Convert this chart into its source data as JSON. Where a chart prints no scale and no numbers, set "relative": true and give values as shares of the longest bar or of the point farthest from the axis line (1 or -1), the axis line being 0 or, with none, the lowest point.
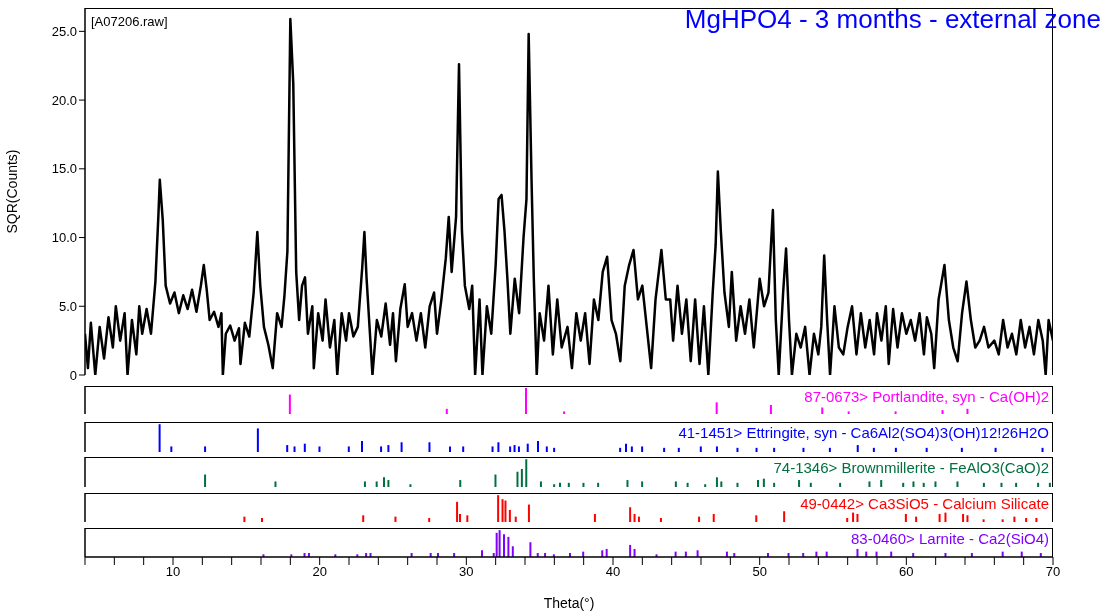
{
  "chart_data": [
    {
      "type": "line",
      "title": "MgHPO4 - 3 months - external zone",
      "ylabel": "SQR(Counts)",
      "annotations": [
        "[A07206.raw]"
      ],
      "color": "#000000",
      "marker": "none",
      "tick_labels": "y",
      "xlim": [
        4,
        70
      ],
      "ylim": [
        0,
        26.7
      ],
      "yticks": [
        0,
        {
          "value": 5,
          "label": "5.0"
        },
        {
          "value": 10,
          "label": "10.0"
        },
        {
          "value": 15,
          "label": "15.0"
        },
        {
          "value": 20,
          "label": "20.0"
        },
        {
          "value": 25,
          "label": "25.0"
        }
      ],
      "x": [
        4.0,
        4.2,
        4.4,
        4.7,
        5.0,
        5.3,
        5.6,
        5.9,
        6.1,
        6.4,
        6.7,
        6.9,
        7.2,
        7.5,
        7.7,
        7.9,
        8.2,
        8.5,
        8.8,
        9.0,
        9.1,
        9.3,
        9.5,
        9.8,
        10.1,
        10.4,
        10.7,
        11.0,
        11.3,
        11.6,
        11.9,
        12.1,
        12.3,
        12.5,
        12.8,
        13.1,
        13.3,
        13.4,
        13.6,
        13.9,
        14.2,
        14.5,
        14.6,
        14.9,
        15.2,
        15.5,
        15.75,
        15.95,
        16.2,
        16.5,
        16.8,
        17.1,
        17.4,
        17.6,
        17.8,
        18.0,
        18.2,
        18.4,
        18.6,
        18.8,
        19.0,
        19.2,
        19.5,
        19.6,
        19.9,
        20.2,
        20.4,
        20.7,
        21.0,
        21.2,
        21.5,
        21.8,
        22.0,
        22.3,
        22.6,
        22.9,
        23.05,
        23.2,
        23.4,
        23.6,
        23.9,
        24.2,
        24.5,
        24.8,
        25.0,
        25.2,
        25.5,
        25.8,
        26.0,
        26.3,
        26.6,
        26.9,
        27.2,
        27.5,
        27.8,
        28.0,
        28.3,
        28.6,
        28.8,
        29.0,
        29.3,
        29.5,
        29.7,
        29.9,
        30.2,
        30.4,
        30.6,
        30.9,
        31.1,
        31.4,
        31.7,
        32.0,
        32.2,
        32.4,
        32.6,
        32.8,
        33.0,
        33.3,
        33.6,
        33.9,
        34.1,
        34.25,
        34.45,
        34.6,
        34.8,
        35.0,
        35.3,
        35.6,
        35.9,
        36.2,
        36.5,
        36.9,
        37.2,
        37.5,
        37.8,
        38.1,
        38.4,
        38.7,
        39.0,
        39.3,
        39.6,
        39.9,
        40.2,
        40.5,
        40.8,
        41.1,
        41.4,
        41.7,
        42.0,
        42.3,
        42.6,
        42.9,
        43.3,
        43.6,
        43.9,
        44.1,
        44.4,
        44.7,
        45.0,
        45.3,
        45.6,
        45.9,
        46.2,
        46.5,
        46.8,
        47.0,
        47.15,
        47.35,
        47.6,
        47.9,
        48.1,
        48.4,
        48.7,
        49.0,
        49.3,
        49.6,
        50.0,
        50.3,
        50.6,
        50.9,
        51.1,
        51.3,
        51.6,
        51.8,
        52.0,
        52.2,
        52.5,
        52.8,
        53.1,
        53.4,
        53.7,
        54.0,
        54.2,
        54.4,
        54.6,
        54.8,
        55.1,
        55.4,
        55.7,
        56.0,
        56.3,
        56.6,
        56.9,
        57.2,
        57.5,
        57.8,
        58.0,
        58.3,
        58.6,
        58.8,
        59.1,
        59.4,
        59.7,
        60.0,
        60.3,
        60.6,
        60.9,
        61.2,
        61.4,
        61.7,
        61.9,
        62.2,
        62.6,
        62.9,
        63.2,
        63.5,
        63.8,
        64.1,
        64.4,
        64.7,
        65.0,
        65.3,
        65.6,
        66.0,
        66.3,
        66.6,
        66.9,
        67.2,
        67.5,
        67.8,
        68.1,
        68.4,
        68.7,
        69.0,
        69.3,
        69.5,
        69.7,
        70.0
      ],
      "values": [
        3.0,
        0.5,
        3.8,
        0,
        3.5,
        1.2,
        4.2,
        2.0,
        5.0,
        2.5,
        4.5,
        0,
        4.0,
        1.5,
        5.0,
        3.0,
        4.8,
        3.0,
        6.8,
        11.5,
        14.2,
        11.3,
        6.5,
        5.2,
        6.0,
        4.5,
        5.8,
        4.8,
        6.2,
        4.6,
        6.5,
        8.0,
        6.2,
        4.0,
        4.6,
        3.5,
        4.5,
        0,
        3.0,
        3.6,
        2.5,
        3.4,
        0.8,
        3.8,
        2.8,
        6.0,
        10.4,
        6.5,
        3.5,
        2.2,
        0.5,
        4.5,
        3.5,
        5.8,
        9.0,
        25.9,
        21.2,
        7.5,
        4.0,
        6.5,
        7.1,
        3.0,
        5.0,
        0.5,
        4.5,
        2.5,
        5.5,
        2.0,
        4.0,
        0,
        4.5,
        2.5,
        4.5,
        2.8,
        3.5,
        7.8,
        10.4,
        7.0,
        3.5,
        0,
        4.0,
        2.8,
        5.2,
        2.2,
        4.5,
        1.0,
        4.8,
        6.6,
        3.5,
        4.5,
        2.5,
        4.5,
        2.0,
        5.0,
        6.0,
        3.0,
        5.5,
        8.5,
        11.5,
        7.5,
        11.5,
        22.6,
        10.5,
        6.5,
        4.8,
        6.5,
        0,
        5.5,
        0,
        5.0,
        3.0,
        8.0,
        12.8,
        13.1,
        10.5,
        7.0,
        3.0,
        7.0,
        4.5,
        10.0,
        12.8,
        24.8,
        14.0,
        7.0,
        0,
        4.5,
        2.5,
        6.5,
        1.5,
        5.5,
        2.0,
        3.5,
        0.5,
        4.5,
        2.5,
        4.5,
        0.8,
        5.5,
        4.0,
        7.5,
        8.6,
        4.0,
        3.0,
        1.0,
        6.5,
        8.0,
        9.1,
        5.5,
        6.5,
        3.5,
        0.5,
        5.5,
        9.1,
        5.5,
        5.5,
        2.5,
        6.5,
        3.0,
        5.5,
        1.0,
        5.5,
        0.8,
        5.0,
        0,
        6.0,
        9.5,
        14.8,
        10.5,
        6.0,
        3.5,
        7.5,
        2.5,
        5.0,
        3.0,
        5.5,
        2.0,
        7.0,
        5.0,
        6.0,
        12.0,
        4.0,
        0,
        6.0,
        9.2,
        4.0,
        0,
        3.0,
        2.0,
        3.5,
        0,
        3.0,
        1.5,
        3.5,
        8.7,
        4.0,
        0,
        5.0,
        2.0,
        1.5,
        3.5,
        5.0,
        1.5,
        4.5,
        2.0,
        4.0,
        1.5,
        4.5,
        2.5,
        5.0,
        0.8,
        4.8,
        2.0,
        4.5,
        3.0,
        4.0,
        2.5,
        4.5,
        1.5,
        4.2,
        3.0,
        0.5,
        5.5,
        8.0,
        4.0,
        2.0,
        1.0,
        4.5,
        6.8,
        4.0,
        2.0,
        2.5,
        3.5,
        2.0,
        2.5,
        1.5,
        4.0,
        2.0,
        3.0,
        1.5,
        4.0,
        2.0,
        3.5,
        1.5,
        4.0,
        2.5,
        0,
        4.0,
        2.5
      ]
    },
    {
      "type": "bar",
      "relative": true,
      "tick_labels": false,
      "xlim": [
        4,
        70
      ],
      "x": [
        18.0,
        28.7,
        34.1,
        36.7,
        47.1,
        50.8,
        54.3,
        56.1,
        59.3,
        62.5,
        64.2
      ],
      "series": [
        {
          "name": "87-0673> Portlandite, syn - Ca(OH)2",
          "color": "#ff00ff",
          "values": [
            0.75,
            0.2,
            1.0,
            0.1,
            0.45,
            0.35,
            0.25,
            0.1,
            0.1,
            0.15,
            0.2
          ]
        }
      ]
    },
    {
      "type": "bar",
      "relative": true,
      "tick_labels": false,
      "xlim": [
        4,
        70
      ],
      "x": [
        9.1,
        9.9,
        12.2,
        15.8,
        17.8,
        18.3,
        19.0,
        20.0,
        22.0,
        22.9,
        24.2,
        24.7,
        25.6,
        27.5,
        28.9,
        29.8,
        31.8,
        32.2,
        33.0,
        33.3,
        33.6,
        34.2,
        34.9,
        35.5,
        36.0,
        40.5,
        40.9,
        41.3,
        42.0,
        43.5,
        44.5,
        46.0,
        47.1,
        48.5,
        49.8,
        51.0,
        53.0,
        54.8,
        56.7,
        57.8,
        59.3,
        61.4,
        63.8,
        66.1,
        69.3
      ],
      "series": [
        {
          "name": "41-1451> Ettringite, syn - Ca6Al2(SO4)3(OH)12!26H2O",
          "color": "#0000ff",
          "values": [
            1.0,
            0.2,
            0.2,
            0.85,
            0.25,
            0.2,
            0.3,
            0.2,
            0.2,
            0.4,
            0.2,
            0.25,
            0.35,
            0.35,
            0.2,
            0.2,
            0.2,
            0.35,
            0.2,
            0.25,
            0.2,
            0.3,
            0.4,
            0.2,
            0.15,
            0.15,
            0.3,
            0.2,
            0.2,
            0.15,
            0.15,
            0.2,
            0.2,
            0.15,
            0.15,
            0.15,
            0.15,
            0.15,
            0.25,
            0.15,
            0.15,
            0.15,
            0.15,
            0.15,
            0.15
          ]
        }
      ]
    },
    {
      "type": "bar",
      "relative": true,
      "tick_labels": false,
      "xlim": [
        4,
        70
      ],
      "x": [
        12.2,
        17.0,
        23.1,
        23.9,
        24.4,
        24.7,
        26.2,
        29.6,
        32.0,
        33.5,
        33.8,
        34.1,
        35.1,
        36.0,
        36.4,
        37.0,
        38.0,
        39.0,
        41.0,
        42.0,
        44.3,
        45.1,
        46.3,
        47.1,
        47.4,
        48.5,
        49.9,
        50.3,
        51.0,
        52.7,
        53.5,
        55.5,
        57.5,
        58.3,
        59.8,
        60.5,
        61.2,
        62.0,
        63.5,
        65.3,
        66.5,
        67.5,
        69.0,
        69.8
      ],
      "series": [
        {
          "name": "74-1346> Brownmillerite - FeAlO3(CaO)2",
          "color": "#007040",
          "values": [
            0.45,
            0.2,
            0.2,
            0.2,
            0.35,
            0.25,
            0.1,
            0.25,
            0.45,
            0.55,
            0.65,
            1.0,
            0.2,
            0.1,
            0.15,
            0.15,
            0.15,
            0.15,
            0.25,
            0.2,
            0.2,
            0.15,
            0.1,
            0.35,
            0.2,
            0.15,
            0.25,
            0.3,
            0.15,
            0.25,
            0.15,
            0.15,
            0.2,
            0.25,
            0.15,
            0.2,
            0.15,
            0.2,
            0.2,
            0.15,
            0.15,
            0.15,
            0.15,
            0.15
          ]
        }
      ]
    },
    {
      "type": "bar",
      "relative": true,
      "tick_labels": false,
      "xlim": [
        4,
        70
      ],
      "x": [
        14.9,
        16.1,
        23.0,
        25.2,
        27.5,
        29.4,
        29.6,
        30.1,
        32.2,
        32.5,
        32.7,
        33.0,
        33.4,
        34.3,
        38.8,
        41.2,
        41.5,
        41.8,
        43.3,
        45.9,
        46.9,
        49.8,
        51.7,
        56.0,
        56.4,
        56.7,
        60.0,
        60.7,
        62.3,
        62.7,
        63.9,
        64.2,
        65.3,
        66.6,
        67.4,
        68.2,
        68.9
      ],
      "series": [
        {
          "name": "49-0442> Ca3SiO5 - Calcium Silicate",
          "color": "#ff0000",
          "values": [
            0.2,
            0.15,
            0.25,
            0.2,
            0.15,
            0.75,
            0.3,
            0.25,
            1.0,
            0.85,
            0.8,
            0.45,
            0.2,
            0.65,
            0.3,
            0.55,
            0.3,
            0.2,
            0.15,
            0.2,
            0.3,
            0.25,
            0.4,
            0.15,
            0.35,
            0.3,
            0.3,
            0.2,
            0.3,
            0.35,
            0.3,
            0.25,
            0.1,
            0.1,
            0.2,
            0.15,
            0.15
          ]
        }
      ]
    },
    {
      "type": "bar",
      "relative": true,
      "tick_labels": "x",
      "xlabel": "Theta(°)",
      "xlim": [
        4,
        70
      ],
      "xticks": [
        {
          "value": 4,
          "label": null
        },
        {
          "value": 6,
          "label": null
        },
        {
          "value": 8,
          "label": null
        },
        10,
        {
          "value": 12,
          "label": null
        },
        {
          "value": 14,
          "label": null
        },
        {
          "value": 16,
          "label": null
        },
        {
          "value": 18,
          "label": null
        },
        20,
        {
          "value": 22,
          "label": null
        },
        {
          "value": 24,
          "label": null
        },
        {
          "value": 26,
          "label": null
        },
        {
          "value": 28,
          "label": null
        },
        30,
        {
          "value": 32,
          "label": null
        },
        {
          "value": 34,
          "label": null
        },
        {
          "value": 36,
          "label": null
        },
        {
          "value": 38,
          "label": null
        },
        40,
        {
          "value": 42,
          "label": null
        },
        {
          "value": 44,
          "label": null
        },
        {
          "value": 46,
          "label": null
        },
        {
          "value": 48,
          "label": null
        },
        50,
        {
          "value": 52,
          "label": null
        },
        {
          "value": 54,
          "label": null
        },
        {
          "value": 56,
          "label": null
        },
        {
          "value": 58,
          "label": null
        },
        60,
        {
          "value": 62,
          "label": null
        },
        {
          "value": 64,
          "label": null
        },
        {
          "value": 66,
          "label": null
        },
        {
          "value": 68,
          "label": null
        },
        70
      ],
      "x": [
        16.2,
        18.1,
        19.0,
        19.3,
        21.1,
        22.6,
        23.2,
        23.5,
        26.3,
        27.6,
        28.1,
        29.2,
        31.1,
        31.9,
        32.1,
        32.3,
        32.6,
        32.9,
        33.2,
        34.4,
        34.9,
        35.4,
        36.0,
        37.1,
        38.0,
        39.3,
        39.6,
        41.2,
        41.5,
        43.0,
        44.3,
        45.0,
        45.8,
        47.8,
        48.3,
        50.6,
        52.0,
        53.0,
        53.9,
        54.6,
        56.7,
        57.3,
        58.0,
        59.0,
        60.5,
        62.7,
        64.5,
        66.6,
        67.9,
        69.2
      ],
      "series": [
        {
          "name": "83-0460> Larnite - Ca2(SiO4)",
          "color": "#8000ff",
          "values": [
            0.1,
            0.1,
            0.15,
            0.15,
            0.1,
            0.1,
            0.15,
            0.15,
            0.15,
            0.15,
            0.15,
            0.15,
            0.25,
            0.15,
            0.9,
            1.0,
            0.85,
            0.75,
            0.4,
            0.55,
            0.15,
            0.15,
            0.1,
            0.15,
            0.2,
            0.25,
            0.3,
            0.45,
            0.3,
            0.1,
            0.2,
            0.2,
            0.25,
            0.2,
            0.15,
            0.15,
            0.15,
            0.15,
            0.2,
            0.2,
            0.3,
            0.2,
            0.2,
            0.2,
            0.15,
            0.15,
            0.15,
            0.2,
            0.2,
            0.15
          ]
        }
      ]
    }
  ]
}
